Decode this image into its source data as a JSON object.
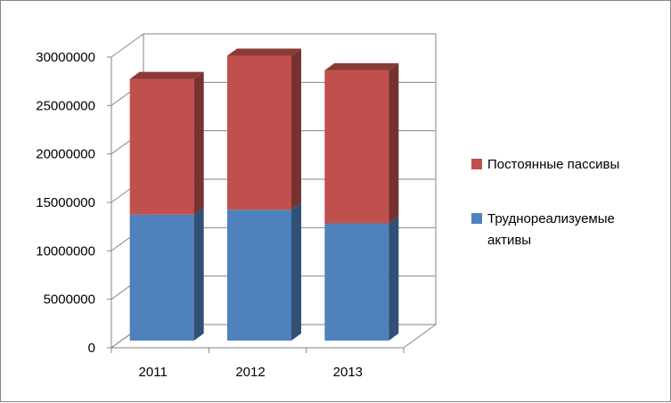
{
  "chart_data": {
    "type": "bar",
    "stacked": true,
    "three_d": true,
    "categories": [
      "2011",
      "2012",
      "2013"
    ],
    "series": [
      {
        "name": "Труднореализуемые активы",
        "values": [
          13000000,
          13500000,
          12100000
        ],
        "color": "#4f81bd"
      },
      {
        "name": "Постоянные пассивы",
        "values": [
          14000000,
          15900000,
          15800000
        ],
        "color": "#c0504d"
      }
    ],
    "ylim": [
      0,
      30000000
    ],
    "yticks": [
      "0",
      "5000000",
      "10000000",
      "15000000",
      "20000000",
      "25000000",
      "30000000"
    ],
    "grid": true,
    "legend_position": "right",
    "title": "",
    "xlabel": "",
    "ylabel": ""
  },
  "legend": {
    "items": [
      {
        "line1": "Постоянные пассивы",
        "line2": "",
        "color": "#c0504d"
      },
      {
        "line1": "Труднореализуемые",
        "line2": "активы",
        "color": "#4f81bd"
      }
    ]
  }
}
